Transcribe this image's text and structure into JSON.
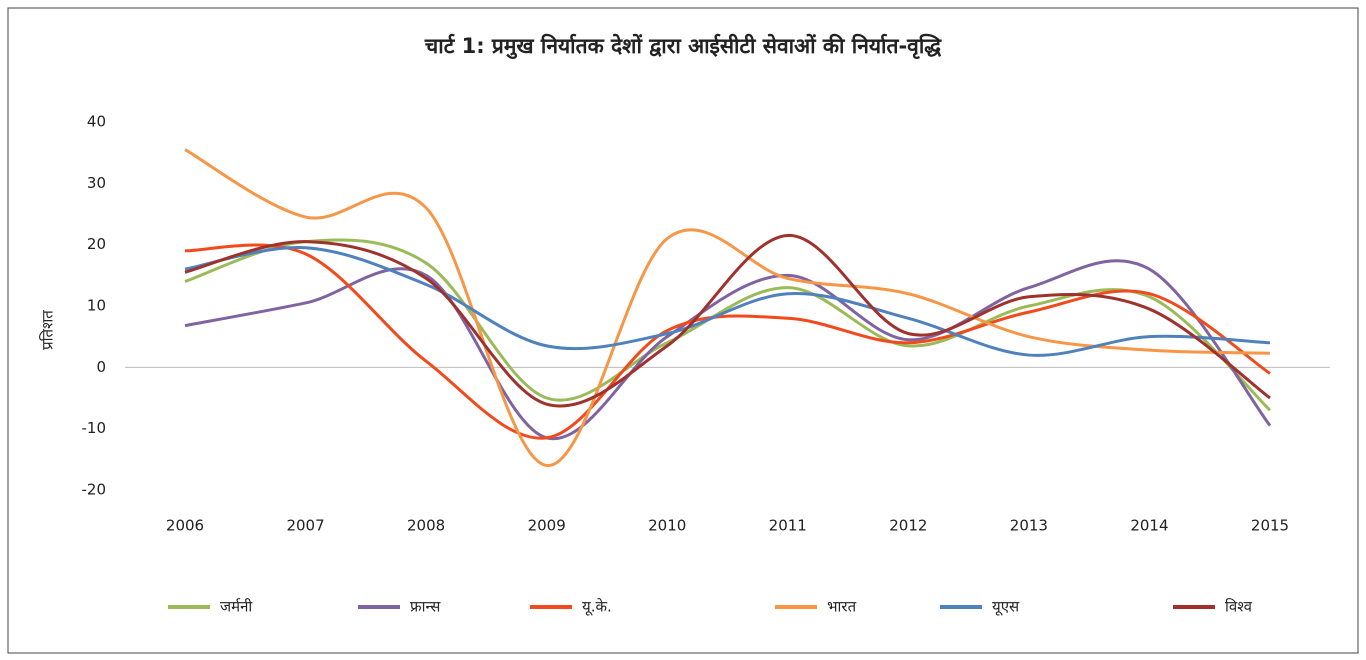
{
  "chart_data": {
    "type": "line",
    "title": "चार्ट 1: प्रमुख निर्यातक देशों द्वारा आईसीटी सेवाओं की निर्यात-वृद्धि",
    "y_label": "प्रतिशत",
    "categories": [
      "2006",
      "2007",
      "2008",
      "2009",
      "2010",
      "2011",
      "2012",
      "2013",
      "2014",
      "2015"
    ],
    "ylim": [
      -20,
      40
    ],
    "yticks": [
      -20,
      -10,
      0,
      10,
      20,
      30,
      40
    ],
    "smooth": true,
    "legend": "bottom",
    "series": [
      {
        "name": "जर्मनी",
        "color": "#9bbb59",
        "values": [
          14,
          20.5,
          17,
          -5,
          4,
          13,
          3.5,
          10,
          11.5,
          -7
        ]
      },
      {
        "name": "फ्रान्स",
        "color": "#8064a2",
        "values": [
          6.8,
          10.5,
          15,
          -11.5,
          5,
          15,
          4.5,
          13,
          16,
          -9.5
        ]
      },
      {
        "name": "यू.के.",
        "color": "#f24a1c",
        "values": [
          19,
          18.5,
          1,
          -11.5,
          6,
          8,
          4,
          9,
          12,
          -1
        ]
      },
      {
        "name": "भारत",
        "color": "#f79646",
        "values": [
          35.5,
          24.5,
          26,
          -16,
          21,
          14.5,
          12,
          5,
          2.8,
          2.3
        ]
      },
      {
        "name": "यूएस",
        "color": "#4f81bd",
        "values": [
          16,
          19.5,
          13.5,
          3.5,
          5.5,
          12,
          8,
          2,
          5,
          4
        ]
      },
      {
        "name": "विश्व",
        "color": "#a0322e",
        "values": [
          15.5,
          20.5,
          14.5,
          -6,
          3.5,
          21.5,
          5.5,
          11.5,
          9.5,
          -5
        ]
      }
    ]
  }
}
